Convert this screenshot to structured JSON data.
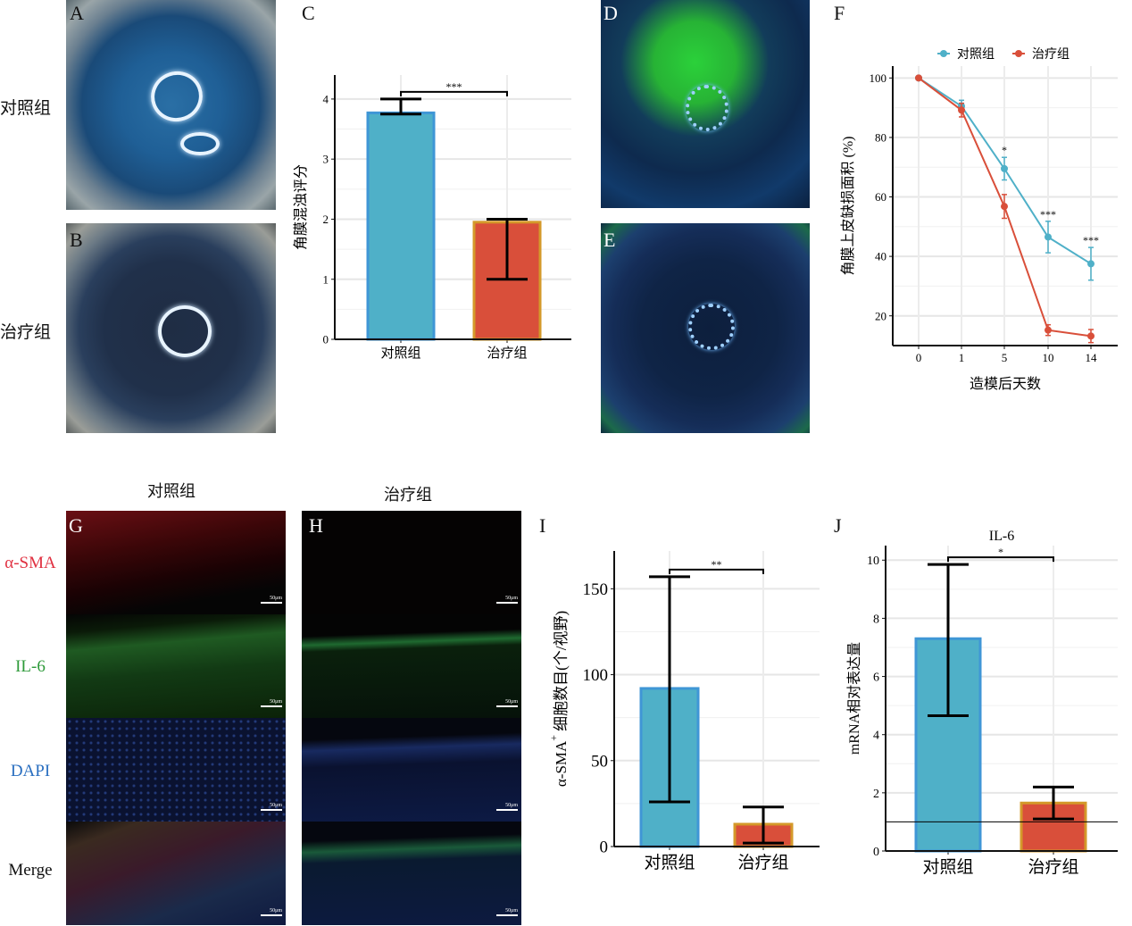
{
  "panels": {
    "A": "A",
    "B": "B",
    "C": "C",
    "D": "D",
    "E": "E",
    "F": "F",
    "G": "G",
    "H": "H",
    "I": "I",
    "J": "J"
  },
  "row_labels": {
    "control": "对照组",
    "treatment": "治疗组"
  },
  "histology": {
    "col_titles": [
      "对照组",
      "治疗组"
    ],
    "stains": [
      {
        "label": "α-SMA",
        "color": "#e03040"
      },
      {
        "label": "IL-6",
        "color": "#2e9a3a"
      },
      {
        "label": "DAPI",
        "color": "#2a6fc0"
      },
      {
        "label": "Merge",
        "color": "#111111"
      }
    ],
    "scale_bar": "50μm"
  },
  "colors": {
    "control": "#4fb0c8",
    "control_edge": "#3f96d6",
    "treatment": "#d94f3a",
    "treatment_edge": "#d4992a"
  },
  "chart_data": [
    {
      "id": "C",
      "type": "bar",
      "categories": [
        "对照组",
        "治疗组"
      ],
      "values": [
        3.77,
        1.95
      ],
      "error_low": [
        3.75,
        1.0
      ],
      "error_high": [
        4.0,
        2.0
      ],
      "ylabel": "角膜混浊评分",
      "xlabel": "",
      "ylim": [
        0,
        4.4
      ],
      "yticks": [
        0,
        1,
        2,
        3,
        4
      ],
      "significance": "***",
      "grid": true
    },
    {
      "id": "F",
      "type": "line",
      "x": [
        "0",
        "1",
        "5",
        "10",
        "14"
      ],
      "series": [
        {
          "name": "对照组",
          "values": [
            100,
            90.5,
            69.5,
            46.5,
            37.5
          ],
          "error": [
            0,
            2,
            3.8,
            5.3,
            5.5
          ],
          "color": "#4fb0c8"
        },
        {
          "name": "治疗组",
          "values": [
            100,
            89.2,
            56.8,
            15.2,
            13.2
          ],
          "error": [
            0,
            2.3,
            4,
            1.8,
            2.2
          ],
          "color": "#d94f3a"
        }
      ],
      "annotations": [
        "",
        "",
        "*",
        "***",
        "***"
      ],
      "ylabel": "角膜上皮缺损面积 (%)",
      "xlabel": "造模后天数",
      "ylim": [
        10,
        104
      ],
      "yticks": [
        20,
        40,
        60,
        80,
        100
      ],
      "legend": "top",
      "grid": true
    },
    {
      "id": "I",
      "type": "bar",
      "categories": [
        "对照组",
        "治疗组"
      ],
      "values": [
        92,
        13
      ],
      "error_low": [
        26,
        2
      ],
      "error_high": [
        157,
        23
      ],
      "ylabel_prefix": "α-SMA",
      "ylabel_sup": "+",
      "ylabel": "细胞数目(个/视野)",
      "xlabel": "",
      "ylim": [
        0,
        172
      ],
      "yticks": [
        0,
        50,
        100,
        150
      ],
      "significance": "**",
      "grid": true
    },
    {
      "id": "J",
      "type": "bar",
      "title": "IL-6",
      "categories": [
        "对照组",
        "治疗组"
      ],
      "values": [
        7.3,
        1.65
      ],
      "error_low": [
        4.65,
        1.1
      ],
      "error_high": [
        9.85,
        2.2
      ],
      "reference_line": 1.0,
      "ylabel": "mRNA相对表达量",
      "xlabel": "",
      "ylim": [
        0,
        10.5
      ],
      "yticks": [
        0,
        2,
        4,
        6,
        8,
        10
      ],
      "significance": "*",
      "grid": true
    }
  ]
}
